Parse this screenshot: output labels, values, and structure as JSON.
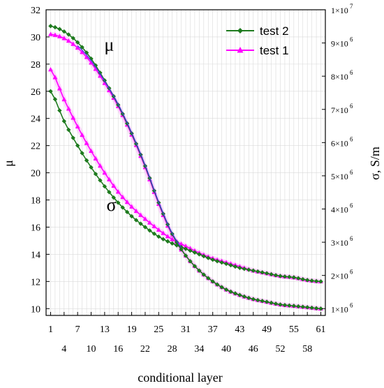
{
  "chart_data": {
    "type": "line",
    "title": "",
    "xlabel": "conditional layer",
    "ylabel_left": "μ",
    "ylabel_right": "σ, S/m",
    "xlim": [
      0,
      62
    ],
    "ylim_left": [
      9.5,
      32
    ],
    "ylim_right": [
      1000000,
      10000000
    ],
    "grid": true,
    "legend_position": "top-right",
    "x_ticks_top_row": [
      "1",
      "7",
      "13",
      "19",
      "25",
      "31",
      "37",
      "43",
      "49",
      "55",
      "61"
    ],
    "x_ticks_bottom_row": [
      "4",
      "10",
      "16",
      "22",
      "28",
      "34",
      "40",
      "46",
      "52",
      "58"
    ],
    "y_ticks_left": [
      "10",
      "12",
      "14",
      "16",
      "18",
      "20",
      "22",
      "24",
      "26",
      "28",
      "30",
      "32"
    ],
    "y_ticks_right": [
      {
        "mantissa": "1×10",
        "exp": "6",
        "value": 1000000
      },
      {
        "mantissa": "2×10",
        "exp": "6",
        "value": 2000000
      },
      {
        "mantissa": "3×10",
        "exp": "6",
        "value": 3000000
      },
      {
        "mantissa": "4×10",
        "exp": "6",
        "value": 4000000
      },
      {
        "mantissa": "5×10",
        "exp": "6",
        "value": 5000000
      },
      {
        "mantissa": "6×10",
        "exp": "6",
        "value": 6000000
      },
      {
        "mantissa": "7×10",
        "exp": "6",
        "value": 7000000
      },
      {
        "mantissa": "8×10",
        "exp": "6",
        "value": 8000000
      },
      {
        "mantissa": "9×10",
        "exp": "6",
        "value": 9000000
      },
      {
        "mantissa": "1×10",
        "exp": "7",
        "value": 10000000
      }
    ],
    "annotations": [
      {
        "text": "μ",
        "x": 14,
        "y": 29
      },
      {
        "text": "σ",
        "x": 14.5,
        "y": 17.2
      }
    ],
    "series": [
      {
        "name": "test 2",
        "color": "#1e7a1e",
        "marker": "diamond",
        "kind": "mu",
        "keypoints": [
          [
            1,
            30.8
          ],
          [
            4,
            30.4
          ],
          [
            7,
            29.6
          ],
          [
            10,
            28.4
          ],
          [
            13,
            26.8
          ],
          [
            16,
            25.0
          ],
          [
            19,
            22.9
          ],
          [
            22,
            20.5
          ],
          [
            25,
            17.8
          ],
          [
            28,
            15.5
          ],
          [
            31,
            13.9
          ],
          [
            34,
            12.8
          ],
          [
            37,
            12.0
          ],
          [
            40,
            11.4
          ],
          [
            43,
            11.0
          ],
          [
            46,
            10.7
          ],
          [
            49,
            10.5
          ],
          [
            52,
            10.3
          ],
          [
            55,
            10.2
          ],
          [
            58,
            10.1
          ],
          [
            61,
            10.0
          ]
        ]
      },
      {
        "name": "test 1",
        "color": "#ff00ff",
        "marker": "triangle",
        "kind": "mu",
        "keypoints": [
          [
            1,
            30.2
          ],
          [
            4,
            29.9
          ],
          [
            7,
            29.2
          ],
          [
            10,
            28.1
          ],
          [
            13,
            26.6
          ],
          [
            16,
            24.9
          ],
          [
            19,
            22.8
          ],
          [
            22,
            20.4
          ],
          [
            25,
            17.7
          ],
          [
            28,
            15.4
          ],
          [
            31,
            13.9
          ],
          [
            34,
            12.8
          ],
          [
            37,
            12.0
          ],
          [
            40,
            11.4
          ],
          [
            43,
            11.0
          ],
          [
            46,
            10.7
          ],
          [
            49,
            10.5
          ],
          [
            52,
            10.3
          ],
          [
            55,
            10.2
          ],
          [
            58,
            10.1
          ],
          [
            61,
            10.0
          ]
        ]
      },
      {
        "name": "test 2",
        "color": "#1e7a1e",
        "marker": "diamond",
        "kind": "sigma",
        "keypoints": [
          [
            1,
            26.0
          ],
          [
            4,
            23.8
          ],
          [
            7,
            22.0
          ],
          [
            10,
            20.4
          ],
          [
            13,
            19.0
          ],
          [
            16,
            17.8
          ],
          [
            19,
            16.8
          ],
          [
            22,
            16.0
          ],
          [
            25,
            15.3
          ],
          [
            28,
            14.8
          ],
          [
            31,
            14.4
          ],
          [
            34,
            14.0
          ],
          [
            37,
            13.6
          ],
          [
            40,
            13.3
          ],
          [
            43,
            13.0
          ],
          [
            46,
            12.8
          ],
          [
            49,
            12.6
          ],
          [
            52,
            12.4
          ],
          [
            55,
            12.3
          ],
          [
            58,
            12.1
          ],
          [
            61,
            12.0
          ]
        ]
      },
      {
        "name": "test 1",
        "color": "#ff00ff",
        "marker": "triangle",
        "kind": "sigma",
        "keypoints": [
          [
            1,
            27.6
          ],
          [
            4,
            25.4
          ],
          [
            7,
            23.4
          ],
          [
            10,
            21.6
          ],
          [
            13,
            20.0
          ],
          [
            16,
            18.6
          ],
          [
            19,
            17.5
          ],
          [
            22,
            16.6
          ],
          [
            25,
            15.8
          ],
          [
            28,
            15.1
          ],
          [
            31,
            14.6
          ],
          [
            34,
            14.1
          ],
          [
            37,
            13.7
          ],
          [
            40,
            13.4
          ],
          [
            43,
            13.1
          ],
          [
            46,
            12.8
          ],
          [
            49,
            12.6
          ],
          [
            52,
            12.4
          ],
          [
            55,
            12.3
          ],
          [
            58,
            12.1
          ],
          [
            61,
            12.0
          ]
        ]
      }
    ],
    "legend": [
      {
        "name": "test 2",
        "color": "#1e7a1e",
        "marker": "diamond"
      },
      {
        "name": "test 1",
        "color": "#ff00ff",
        "marker": "triangle"
      }
    ],
    "mu_trend_color": "#3a3adf"
  }
}
